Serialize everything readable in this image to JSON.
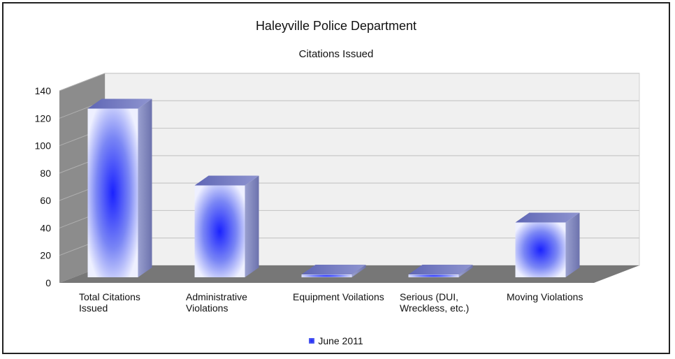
{
  "chart_data": {
    "type": "bar",
    "title": "Haleyville Police Department",
    "subtitle": "Citations  Issued",
    "categories": [
      [
        "Total Citations",
        "Issued"
      ],
      [
        "Administrative",
        "Violations"
      ],
      [
        "Equipment Voilations"
      ],
      [
        "Serious (DUI,",
        "Wreckless, etc.)"
      ],
      [
        "Moving Violations"
      ]
    ],
    "series": [
      {
        "name": "June 2011",
        "values": [
          126,
          70,
          1,
          4,
          43
        ]
      }
    ],
    "ylim": [
      0,
      140
    ],
    "yticks": [
      0,
      20,
      40,
      60,
      80,
      100,
      120,
      140
    ],
    "grid": true,
    "three_d": true,
    "legend_position": "bottom",
    "colors": {
      "bar_center": "#1a22ff",
      "bar_edge": "#eef0ff",
      "floor": "#777777",
      "wall": "#f0f0f0"
    }
  }
}
